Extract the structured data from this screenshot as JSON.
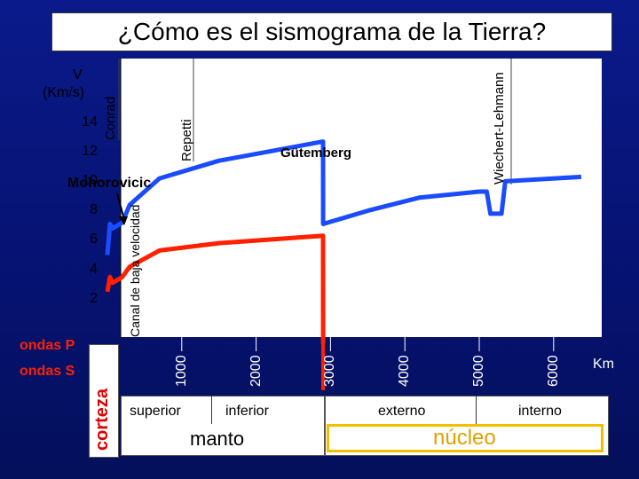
{
  "title": "¿Cómo es el sismograma de la Tierra?",
  "chart_data": {
    "type": "line",
    "ylabel": "V\n(Km/s)",
    "ylabel_lines": [
      "V",
      "(Km/s)"
    ],
    "xlabel": "Km",
    "x_ticks": [
      1000,
      2000,
      3000,
      4000,
      5000,
      6000
    ],
    "x_tick_labels": [
      "1000",
      "2000",
      "3000",
      "4000",
      "5000",
      "6000"
    ],
    "y_ticks": [
      2,
      4,
      6,
      8,
      10,
      12,
      14
    ],
    "y_tick_labels": [
      "2",
      "4",
      "6",
      "8",
      "10",
      "12",
      "14"
    ],
    "xlim": [
      0,
      6371
    ],
    "ylim": [
      0,
      15
    ],
    "grid": false,
    "series": [
      {
        "name": "ondas P",
        "color": "#1a4cff",
        "points": [
          [
            0,
            6.0
          ],
          [
            35,
            8.1
          ],
          [
            70,
            7.8
          ],
          [
            200,
            8.2
          ],
          [
            300,
            9.4
          ],
          [
            700,
            11.2
          ],
          [
            1500,
            12.4
          ],
          [
            2900,
            13.7
          ],
          [
            2901,
            8.1
          ],
          [
            3500,
            9.0
          ],
          [
            4200,
            9.9
          ],
          [
            5000,
            10.3
          ],
          [
            5100,
            10.3
          ],
          [
            5150,
            8.8
          ],
          [
            5300,
            8.8
          ],
          [
            5350,
            11.0
          ],
          [
            6371,
            11.3
          ]
        ]
      },
      {
        "name": "ondas S",
        "color": "#ff2000",
        "points": [
          [
            0,
            3.5
          ],
          [
            35,
            4.5
          ],
          [
            70,
            4.1
          ],
          [
            200,
            4.5
          ],
          [
            300,
            5.2
          ],
          [
            700,
            6.3
          ],
          [
            1500,
            6.8
          ],
          [
            2900,
            7.3
          ],
          [
            2901,
            0
          ],
          [
            2910,
            0
          ]
        ]
      }
    ],
    "annotations": [
      "Conrad",
      "Repetti",
      "Wiechert-Lehmann",
      "Gütemberg",
      "Mohorovicic",
      "Canal de baja velocidad"
    ]
  },
  "legend": {
    "p": "ondas P",
    "s": "ondas S"
  },
  "layers": {
    "corteza": "corteza",
    "manto": "manto",
    "manto_superior": "superior",
    "manto_inferior": "inferior",
    "nucleo": "núcleo",
    "nucleo_externo": "externo",
    "nucleo_interno": "interno"
  }
}
